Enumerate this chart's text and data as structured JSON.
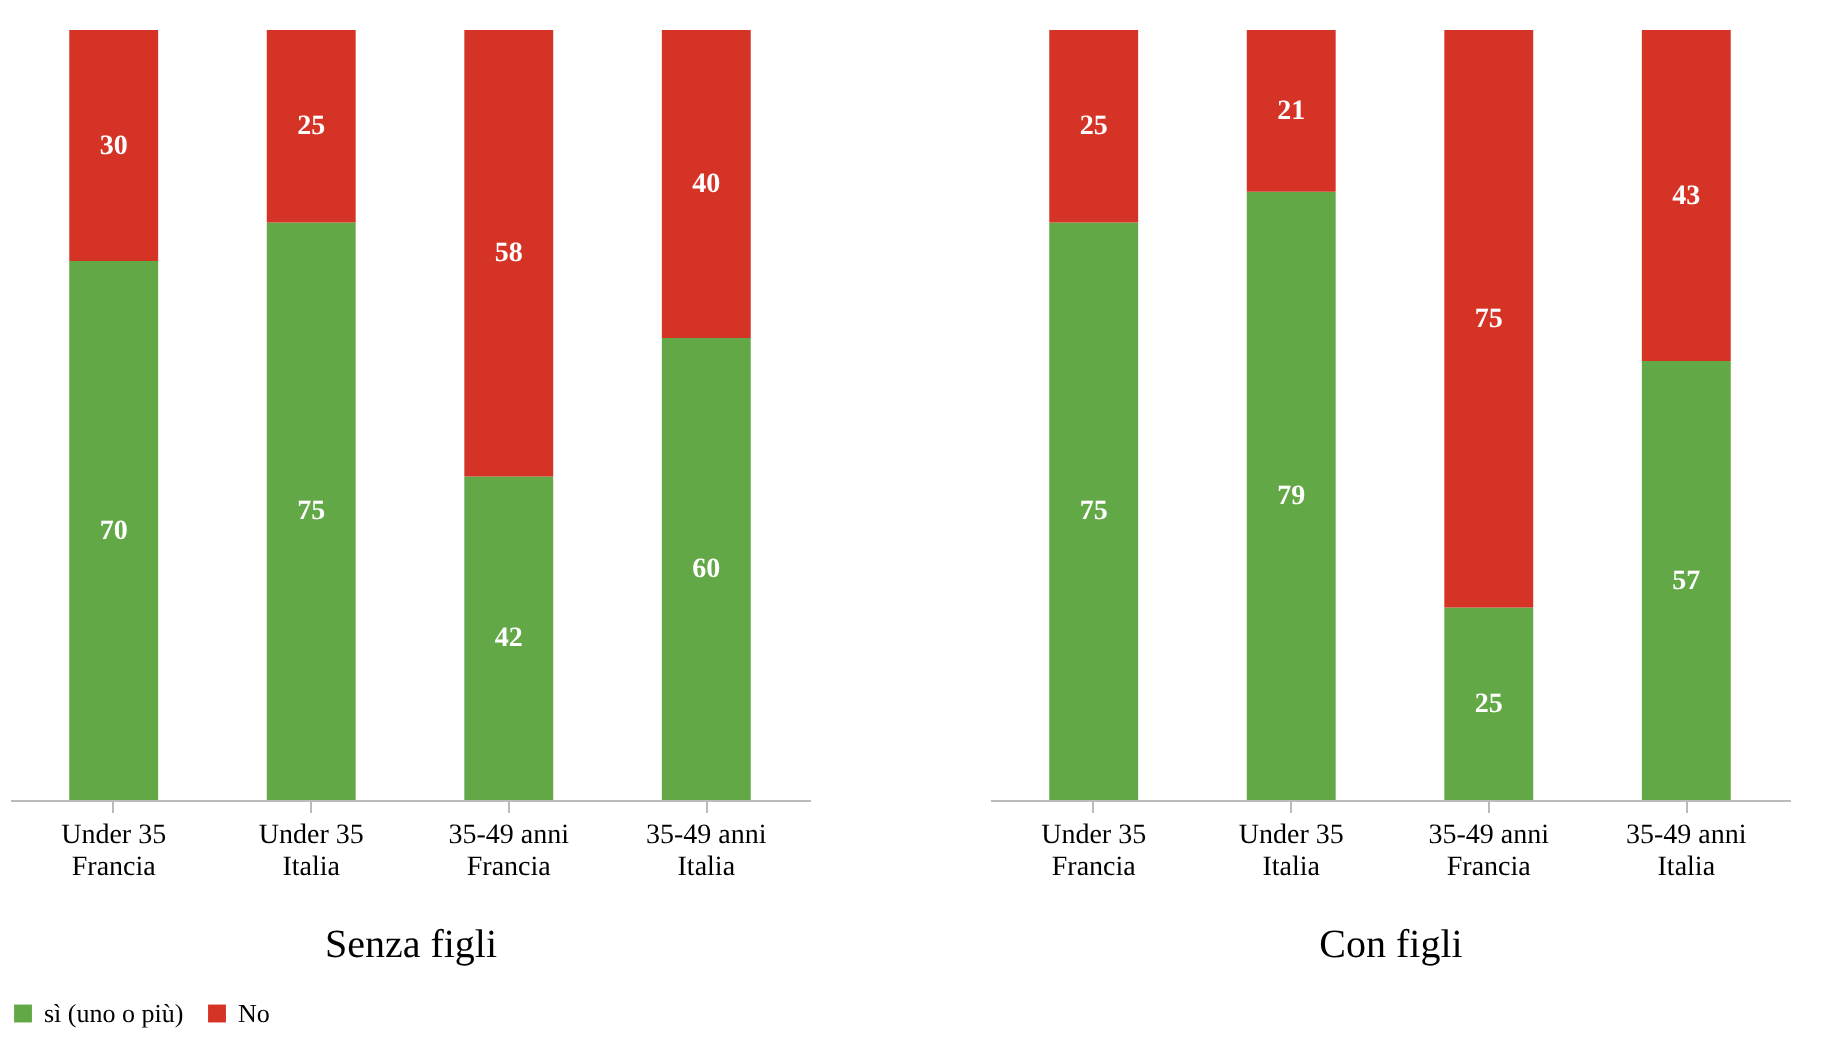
{
  "chart_data": [
    {
      "type": "bar",
      "xlabel": "Senza figli",
      "categories": [
        "Under 35 Francia",
        "Under 35 Italia",
        "35-49 anni Francia",
        "35-49 anni Italia"
      ],
      "stacked": true,
      "data_labels": true,
      "legend": "bottom",
      "series": [
        {
          "name": "sì (uno o più)",
          "color": "#62a846",
          "values": [
            70,
            75,
            42,
            60
          ]
        },
        {
          "name": "No",
          "color": "#d63327",
          "values": [
            30,
            25,
            58,
            40
          ]
        }
      ]
    },
    {
      "type": "bar",
      "xlabel": "Con figli",
      "categories": [
        "Under 35 Francia",
        "Under 35 Italia",
        "35-49 anni Francia",
        "35-49 anni Italia"
      ],
      "stacked": true,
      "data_labels": true,
      "legend": "bottom",
      "series": [
        {
          "name": "sì (uno o più)",
          "color": "#62a846",
          "values": [
            75,
            79,
            25,
            57
          ]
        },
        {
          "name": "No",
          "color": "#d63327",
          "values": [
            25,
            21,
            75,
            43
          ]
        }
      ]
    }
  ]
}
